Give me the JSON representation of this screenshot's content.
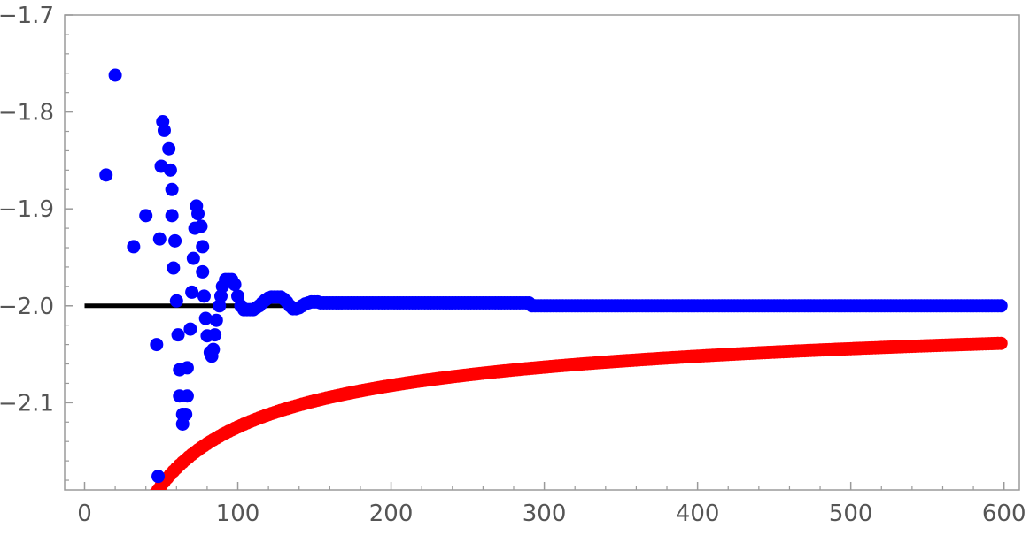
{
  "chart_data": {
    "type": "scatter",
    "title": "",
    "xlabel": "",
    "ylabel": "",
    "xlim": [
      -13,
      610
    ],
    "ylim": [
      -2.19,
      -1.7
    ],
    "x_ticks": [
      0,
      100,
      200,
      300,
      400,
      500,
      600
    ],
    "x_tick_labels": [
      "0",
      "100",
      "200",
      "300",
      "400",
      "500",
      "600"
    ],
    "y_ticks": [
      -1.7,
      -1.8,
      -1.9,
      -2.0,
      -2.1
    ],
    "y_tick_labels": [
      "−1.7",
      "−1.8",
      "−1.9",
      "−2.0",
      "−2.1"
    ],
    "reference_line": {
      "y": -2.0,
      "x_range": [
        0,
        600
      ],
      "color": "#000000"
    },
    "series": [
      {
        "color": "#ff0000",
        "curve": {
          "form": "a - b / sqrt(x)",
          "a": -1.979,
          "b": 1.46,
          "x_start": 28,
          "x_end": 598,
          "step": 2
        }
      },
      {
        "color": "#0000ff",
        "points": [
          [
            14,
            -1.865
          ],
          [
            20,
            -1.762
          ],
          [
            32,
            -1.939
          ],
          [
            40,
            -1.907
          ],
          [
            47,
            -2.04
          ],
          [
            48,
            -2.176
          ],
          [
            49,
            -1.931
          ],
          [
            50,
            -1.856
          ],
          [
            51,
            -1.81
          ],
          [
            52,
            -1.819
          ],
          [
            55,
            -1.838
          ],
          [
            56,
            -1.86
          ],
          [
            57,
            -1.88
          ],
          [
            57,
            -1.907
          ],
          [
            58,
            -1.961
          ],
          [
            59,
            -1.933
          ],
          [
            60,
            -1.995
          ],
          [
            61,
            -2.03
          ],
          [
            62,
            -2.066
          ],
          [
            62,
            -2.093
          ],
          [
            64,
            -2.112
          ],
          [
            64,
            -2.122
          ],
          [
            66,
            -2.112
          ],
          [
            67,
            -2.064
          ],
          [
            67,
            -2.093
          ],
          [
            69,
            -2.024
          ],
          [
            70,
            -1.986
          ],
          [
            71,
            -1.951
          ],
          [
            72,
            -1.92
          ],
          [
            73,
            -1.897
          ],
          [
            74,
            -1.905
          ],
          [
            76,
            -1.918
          ],
          [
            77,
            -1.939
          ],
          [
            77,
            -1.965
          ],
          [
            78,
            -1.99
          ],
          [
            79,
            -2.013
          ],
          [
            80,
            -2.031
          ],
          [
            82,
            -2.048
          ],
          [
            83,
            -2.052
          ],
          [
            84,
            -2.045
          ],
          [
            85,
            -2.03
          ],
          [
            86,
            -2.015
          ],
          [
            88,
            -2.0
          ],
          [
            89,
            -1.99
          ],
          [
            90,
            -1.98
          ],
          [
            92,
            -1.973
          ],
          [
            94,
            -1.973
          ],
          [
            96,
            -1.973
          ],
          [
            98,
            -1.978
          ],
          [
            100,
            -1.99
          ],
          [
            102,
            -2.0
          ],
          [
            104,
            -2.004
          ],
          [
            106,
            -2.004
          ],
          [
            108,
            -2.004
          ],
          [
            110,
            -2.004
          ],
          [
            112,
            -2.002
          ],
          [
            114,
            -2.0
          ],
          [
            116,
            -1.997
          ],
          [
            118,
            -1.994
          ],
          [
            120,
            -1.992
          ],
          [
            122,
            -1.991
          ],
          [
            124,
            -1.991
          ],
          [
            126,
            -1.991
          ],
          [
            128,
            -1.991
          ],
          [
            130,
            -1.993
          ],
          [
            132,
            -1.996
          ],
          [
            134,
            -2.0
          ],
          [
            136,
            -2.003
          ],
          [
            138,
            -2.003
          ],
          [
            140,
            -2.002
          ],
          [
            142,
            -2.0
          ],
          [
            144,
            -1.998
          ],
          [
            146,
            -1.997
          ],
          [
            148,
            -1.996
          ],
          [
            150,
            -1.996
          ],
          [
            152,
            -1.996
          ],
          [
            154,
            -1.997
          ]
        ],
        "flat_segment": {
          "y": -1.997,
          "x_start": 156,
          "x_end": 290,
          "step": 2
        },
        "flat_segment_2": {
          "y": -2.0,
          "x_start": 292,
          "x_end": 598,
          "step": 2
        }
      }
    ],
    "grid": false,
    "frame": true
  }
}
